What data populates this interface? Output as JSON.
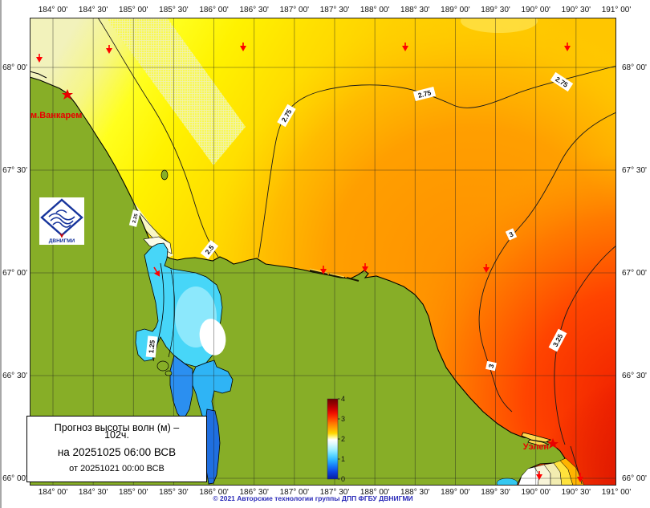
{
  "infobox": {
    "line1": "Прогноз высоты волн (м) –",
    "line2": "102ч.",
    "line3": "на 20251025 06:00 ВСВ",
    "line4": "от 20251021 00:00 ВСВ"
  },
  "axes": {
    "top": [
      "184° 00'",
      "184° 30'",
      "185° 00'",
      "185° 30'",
      "186° 00'",
      "186° 30'",
      "187° 00'",
      "187° 30'",
      "188° 00'",
      "188° 30'",
      "189° 00'",
      "189° 30'",
      "190° 00'",
      "190° 30'",
      "191° 00'"
    ],
    "bottom": [
      "184° 00'",
      "184° 30'",
      "185° 00'",
      "185° 30'",
      "186° 00'",
      "186° 30'",
      "187° 00'",
      "187° 30'",
      "188° 00'",
      "188° 30'",
      "189° 00'",
      "189° 30'",
      "190° 00'",
      "190° 30'",
      "191° 00'"
    ],
    "left": [
      "68° 00'",
      "67° 30'",
      "67° 00'",
      "66° 30'",
      "66° 00'"
    ],
    "right": [
      "68° 00'",
      "67° 30'",
      "67° 00'",
      "66° 30'",
      "66° 00'"
    ]
  },
  "places": [
    {
      "name": "м.Ванкарем"
    },
    {
      "name": "Уэлен"
    }
  ],
  "map": {
    "quantity": "Высота волн",
    "unit": "м",
    "contour_labels": [
      "2.5",
      "2.25",
      "2.75",
      "2.75",
      "2.75",
      "3",
      "3",
      "3.25",
      "1.25"
    ]
  },
  "colorbar": {
    "ticks": [
      "4",
      "3",
      "2",
      "1",
      "0"
    ],
    "min": 0,
    "max": 4
  },
  "logo": {
    "text": "ДВНИГМИ"
  },
  "copyright": "© 2021 Авторские технологии группы ДПП ФГБУ ДВНИГМИ",
  "colors": {
    "land_green": "#87ae27",
    "sea_pale": "#f2f2bb",
    "sea_yellow": "#ffff00",
    "sea_gold": "#ffcf00",
    "sea_orange": "#ff9000",
    "sea_red": "#ef1d00",
    "lagoon_cyan": "#47d6f8",
    "lagoon_blue": "#2b8ff0",
    "marker_red": "#e80000",
    "logo_blue": "#16349c",
    "copyright_blue": "#2a2ab8"
  }
}
